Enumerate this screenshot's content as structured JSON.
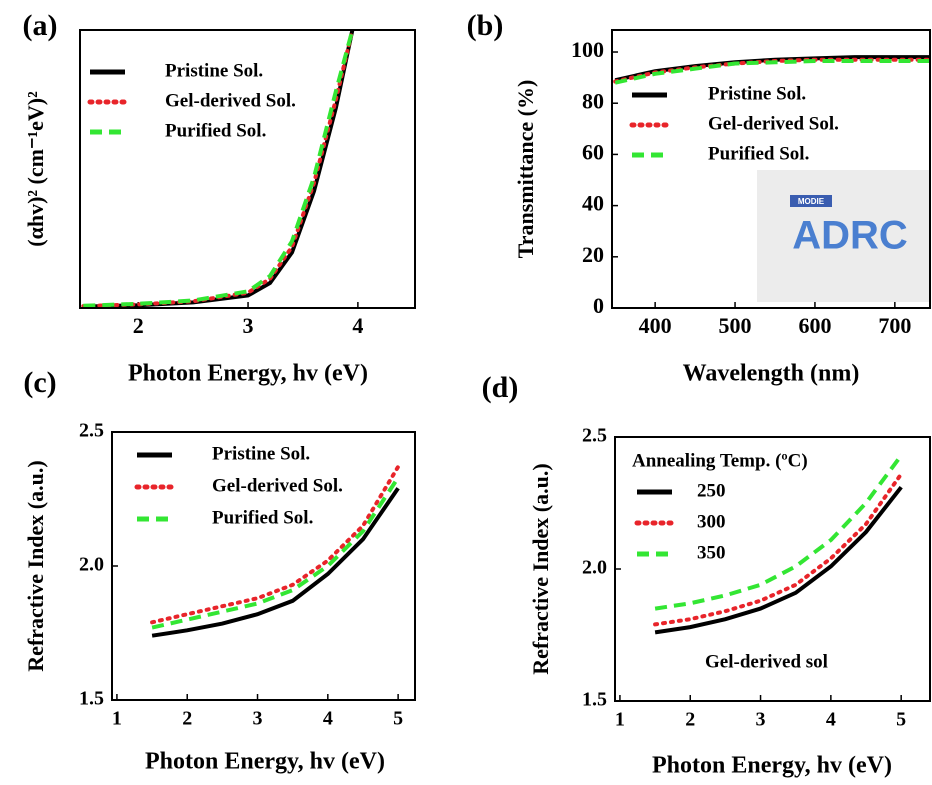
{
  "chart_data": [
    {
      "type": "line",
      "label": "(a)",
      "xlabel": "Photon Energy, hv (eV)",
      "ylabel": "(αhv)² (cm⁻¹eV)²",
      "xlim": [
        1.47,
        4.52
      ],
      "xticks": [
        2,
        3,
        4
      ],
      "ylim": [
        0,
        100
      ],
      "x": [
        1.5,
        2,
        2.5,
        3,
        3.2,
        3.4,
        3.6,
        3.8,
        3.95
      ],
      "series": [
        {
          "name": "Pristine Sol.",
          "color": "#000000",
          "style": "solid",
          "values": [
            0.5,
            1,
            2,
            4.5,
            9,
            20,
            42,
            72,
            100
          ]
        },
        {
          "name": "Gel-derived Sol.",
          "color": "#e8242a",
          "style": "dotted",
          "values": [
            0.7,
            1.3,
            2.4,
            5.5,
            10.5,
            22,
            45,
            75,
            100
          ]
        },
        {
          "name": "Purified Sol.",
          "color": "#33e633",
          "style": "dashed",
          "values": [
            0.8,
            1.5,
            2.7,
            6,
            11.5,
            24,
            47,
            78,
            100
          ]
        }
      ]
    },
    {
      "type": "line",
      "label": "(b)",
      "xlabel": "Wavelength (nm)",
      "ylabel": "Transmittance (%)",
      "xlim": [
        346,
        744
      ],
      "xticks": [
        400,
        500,
        600,
        700
      ],
      "ylim": [
        0,
        108.6
      ],
      "yticks": [
        0,
        20,
        40,
        60,
        80,
        100
      ],
      "x": [
        350,
        400,
        450,
        500,
        550,
        600,
        650,
        700,
        744
      ],
      "series": [
        {
          "name": "Pristine Sol.",
          "color": "#000000",
          "style": "solid",
          "values": [
            89,
            92.5,
            94.5,
            96,
            97,
            97.5,
            98,
            98,
            98
          ]
        },
        {
          "name": "Gel-derived Sol.",
          "color": "#e8242a",
          "style": "dotted",
          "values": [
            88.5,
            92,
            94,
            95.5,
            96.5,
            97,
            97,
            97,
            97
          ]
        },
        {
          "name": "Purified Sol.",
          "color": "#33e633",
          "style": "dashed",
          "values": [
            88,
            91.5,
            93.5,
            95.5,
            96,
            96.5,
            96.5,
            96.5,
            96.5
          ]
        }
      ],
      "inset": [
        "MODIE",
        "ADRC"
      ]
    },
    {
      "type": "line",
      "label": "(c)",
      "xlabel": "Photon Energy, hv (eV)",
      "ylabel": "Refractive Index (a.u.)",
      "xlim": [
        0.93,
        5.24
      ],
      "xticks": [
        1,
        2,
        3,
        4,
        5
      ],
      "ylim": [
        1.5,
        2.5
      ],
      "yticks": [
        1.5,
        {
          "value": 2,
          "label": "2.0"
        },
        2.5
      ],
      "x": [
        1.5,
        2,
        2.5,
        3,
        3.5,
        4,
        4.5,
        5
      ],
      "series": [
        {
          "name": "Pristine Sol.",
          "color": "#000000",
          "style": "solid",
          "values": [
            1.74,
            1.76,
            1.785,
            1.82,
            1.87,
            1.97,
            2.1,
            2.29
          ]
        },
        {
          "name": "Gel-derived Sol.",
          "color": "#e8242a",
          "style": "dotted",
          "values": [
            1.79,
            1.82,
            1.85,
            1.88,
            1.93,
            2.02,
            2.15,
            2.37
          ]
        },
        {
          "name": "Purified Sol.",
          "color": "#33e633",
          "style": "dashed",
          "values": [
            1.77,
            1.8,
            1.83,
            1.86,
            1.91,
            2.0,
            2.13,
            2.33
          ]
        }
      ]
    },
    {
      "type": "line",
      "label": "(d)",
      "xlabel": "Photon Energy, hv (eV)",
      "ylabel": "Refractive Index (a.u.)",
      "legend_title": "Annealing Temp. (ºC)",
      "annotation": "Gel-derived sol",
      "xlim": [
        0.93,
        5.41
      ],
      "xticks": [
        1,
        2,
        3,
        4,
        5
      ],
      "ylim": [
        1.5,
        2.5
      ],
      "yticks": [
        1.5,
        {
          "value": 2,
          "label": "2.0"
        },
        2.5
      ],
      "x": [
        1.5,
        2,
        2.5,
        3,
        3.5,
        4,
        4.5,
        5
      ],
      "series": [
        {
          "name": "250",
          "color": "#000000",
          "style": "solid",
          "values": [
            1.76,
            1.78,
            1.81,
            1.85,
            1.91,
            2.01,
            2.14,
            2.31
          ]
        },
        {
          "name": "300",
          "color": "#e8242a",
          "style": "dotted",
          "values": [
            1.79,
            1.81,
            1.84,
            1.88,
            1.94,
            2.04,
            2.17,
            2.36
          ]
        },
        {
          "name": "350",
          "color": "#33e633",
          "style": "dashed",
          "values": [
            1.85,
            1.87,
            1.9,
            1.94,
            2.01,
            2.11,
            2.25,
            2.43
          ]
        }
      ]
    }
  ]
}
